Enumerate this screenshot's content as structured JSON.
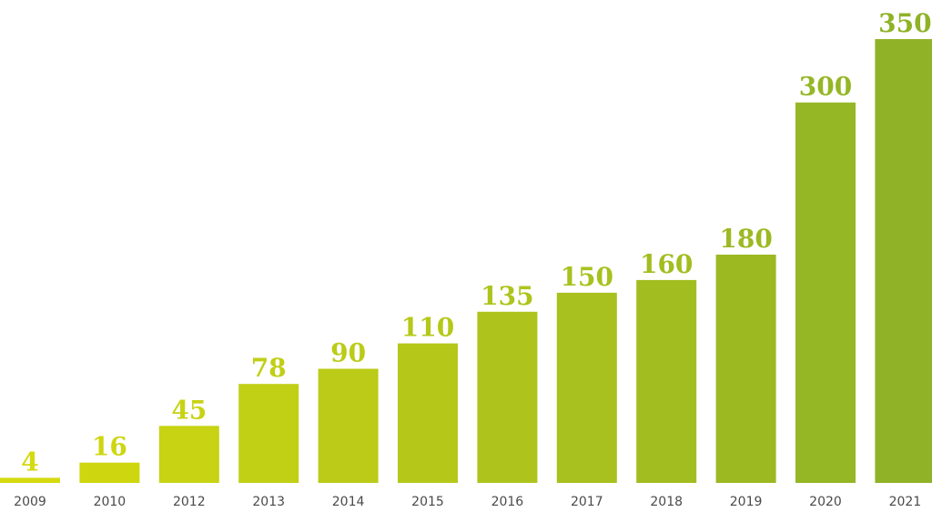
{
  "chart_data": {
    "type": "bar",
    "categories": [
      "2009",
      "2010",
      "2012",
      "2013",
      "2014",
      "2015",
      "2016",
      "2017",
      "2018",
      "2019",
      "2020",
      "2021"
    ],
    "values": [
      4,
      16,
      45,
      78,
      90,
      110,
      135,
      150,
      160,
      180,
      300,
      350
    ],
    "data_labels": [
      "4",
      "16",
      "45",
      "78",
      "90",
      "110",
      "135",
      "150",
      "160",
      "180",
      "300",
      "350"
    ],
    "title": "",
    "xlabel": "",
    "ylabel": "",
    "ylim": [
      0,
      350
    ],
    "grid": false,
    "legend": "none",
    "colors": {
      "gradient_start": "#D4DA0E",
      "gradient_end": "#8FB227",
      "axis_text": "#4a4a4a"
    }
  }
}
